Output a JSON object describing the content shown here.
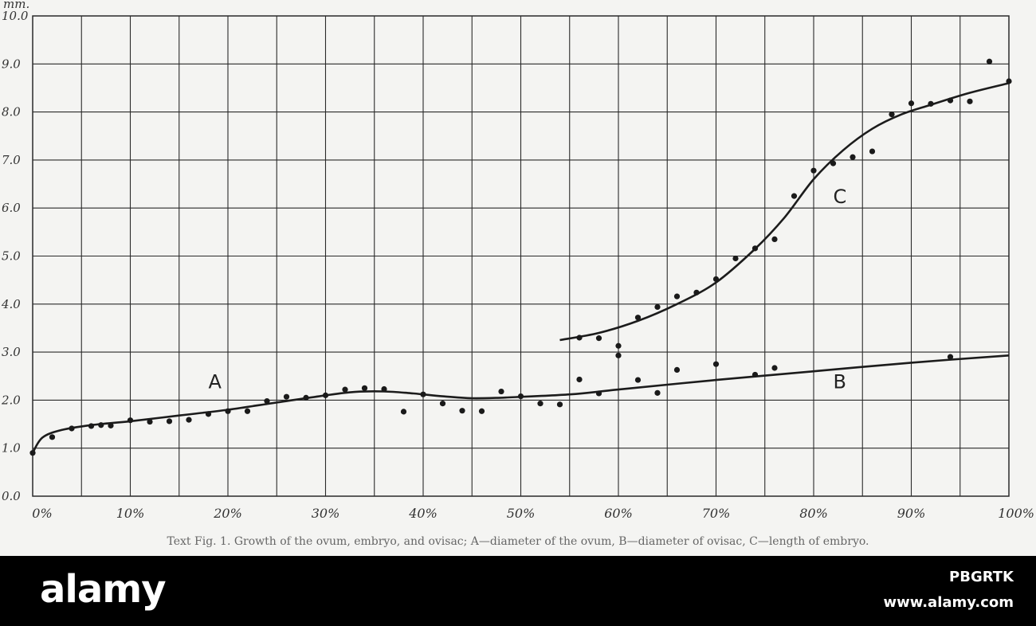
{
  "chart_data": {
    "type": "scatter",
    "y_unit": "mm.",
    "xlim": [
      0,
      100
    ],
    "ylim": [
      0,
      10
    ],
    "grid": true,
    "x_ticks": [
      {
        "value": 0,
        "label": "0%"
      },
      {
        "value": 10,
        "label": "10%"
      },
      {
        "value": 20,
        "label": "20%"
      },
      {
        "value": 30,
        "label": "30%"
      },
      {
        "value": 40,
        "label": "40%"
      },
      {
        "value": 50,
        "label": "50%"
      },
      {
        "value": 60,
        "label": "60%"
      },
      {
        "value": 70,
        "label": "70%"
      },
      {
        "value": 80,
        "label": "80%"
      },
      {
        "value": 90,
        "label": "90%"
      },
      {
        "value": 100,
        "label": "100%"
      }
    ],
    "y_ticks": [
      {
        "value": 0,
        "label": "0.0"
      },
      {
        "value": 1,
        "label": "1.0"
      },
      {
        "value": 2,
        "label": "2.0"
      },
      {
        "value": 3,
        "label": "3.0"
      },
      {
        "value": 4,
        "label": "4.0"
      },
      {
        "value": 5,
        "label": "5.0"
      },
      {
        "value": 6,
        "label": "6.0"
      },
      {
        "value": 7,
        "label": "7.0"
      },
      {
        "value": 8,
        "label": "8.0"
      },
      {
        "value": 9,
        "label": "9.0"
      },
      {
        "value": 10,
        "label": "10.0"
      }
    ],
    "series": [
      {
        "name": "A",
        "label_at": [
          18,
          2.25
        ],
        "curve": [
          [
            0,
            0.9
          ],
          [
            1,
            1.22
          ],
          [
            3,
            1.38
          ],
          [
            6,
            1.48
          ],
          [
            10,
            1.56
          ],
          [
            15,
            1.68
          ],
          [
            20,
            1.8
          ],
          [
            25,
            1.95
          ],
          [
            30,
            2.1
          ],
          [
            33,
            2.17
          ],
          [
            36,
            2.18
          ],
          [
            39,
            2.14
          ],
          [
            42,
            2.08
          ],
          [
            45,
            2.04
          ],
          [
            48,
            2.05
          ]
        ],
        "points": [
          [
            0,
            0.9
          ],
          [
            2,
            1.23
          ],
          [
            4,
            1.41
          ],
          [
            6,
            1.46
          ],
          [
            7,
            1.48
          ],
          [
            8,
            1.47
          ],
          [
            10,
            1.58
          ],
          [
            12,
            1.55
          ],
          [
            14,
            1.56
          ],
          [
            16,
            1.59
          ],
          [
            18,
            1.71
          ],
          [
            20,
            1.77
          ],
          [
            22,
            1.77
          ],
          [
            24,
            1.98
          ],
          [
            26,
            2.07
          ],
          [
            28,
            2.05
          ],
          [
            30,
            2.1
          ],
          [
            32,
            2.22
          ],
          [
            34,
            2.25
          ],
          [
            36,
            2.23
          ],
          [
            38,
            1.76
          ],
          [
            40,
            2.12
          ],
          [
            42,
            1.93
          ],
          [
            44,
            1.78
          ],
          [
            46,
            1.77
          ],
          [
            48,
            2.18
          ]
        ]
      },
      {
        "name": "B",
        "label_at": [
          82,
          2.25
        ],
        "curve": [
          [
            48,
            2.05
          ],
          [
            55,
            2.12
          ],
          [
            60,
            2.22
          ],
          [
            70,
            2.42
          ],
          [
            80,
            2.6
          ],
          [
            90,
            2.78
          ],
          [
            100,
            2.93
          ]
        ],
        "points": [
          [
            50,
            2.08
          ],
          [
            52,
            1.93
          ],
          [
            54,
            1.91
          ],
          [
            56,
            2.43
          ],
          [
            58,
            2.14
          ],
          [
            60,
            2.93
          ],
          [
            62,
            2.42
          ],
          [
            64,
            2.15
          ],
          [
            66,
            2.63
          ],
          [
            70,
            2.75
          ],
          [
            74,
            2.53
          ],
          [
            76,
            2.67
          ],
          [
            94,
            2.9
          ]
        ]
      },
      {
        "name": "C",
        "label_at": [
          82,
          6.1
        ],
        "curve": [
          [
            54,
            3.25
          ],
          [
            58,
            3.4
          ],
          [
            62,
            3.65
          ],
          [
            66,
            4.0
          ],
          [
            70,
            4.45
          ],
          [
            74,
            5.15
          ],
          [
            77,
            5.8
          ],
          [
            80,
            6.6
          ],
          [
            83,
            7.2
          ],
          [
            86,
            7.65
          ],
          [
            89,
            7.95
          ],
          [
            92,
            8.15
          ],
          [
            96,
            8.4
          ],
          [
            100,
            8.6
          ]
        ],
        "points": [
          [
            56,
            3.3
          ],
          [
            58,
            3.29
          ],
          [
            60,
            3.13
          ],
          [
            62,
            3.72
          ],
          [
            64,
            3.94
          ],
          [
            66,
            4.16
          ],
          [
            68,
            4.24
          ],
          [
            70,
            4.52
          ],
          [
            72,
            4.95
          ],
          [
            74,
            5.16
          ],
          [
            76,
            5.35
          ],
          [
            78,
            6.25
          ],
          [
            80,
            6.78
          ],
          [
            82,
            6.93
          ],
          [
            84,
            7.06
          ],
          [
            86,
            7.18
          ],
          [
            88,
            7.95
          ],
          [
            90,
            8.18
          ],
          [
            92,
            8.17
          ],
          [
            94,
            8.24
          ],
          [
            96,
            8.22
          ],
          [
            98,
            9.05
          ],
          [
            100,
            8.64
          ]
        ]
      }
    ]
  },
  "caption": "Text Fig. 1. Growth of the ovum, embryo, and ovisac; A—diameter of the ovum, B—diameter of ovisac, C—length of embryo.",
  "watermark": {
    "logo": "alamy",
    "image_id": "PBGRTK",
    "url": "www.alamy.com"
  }
}
